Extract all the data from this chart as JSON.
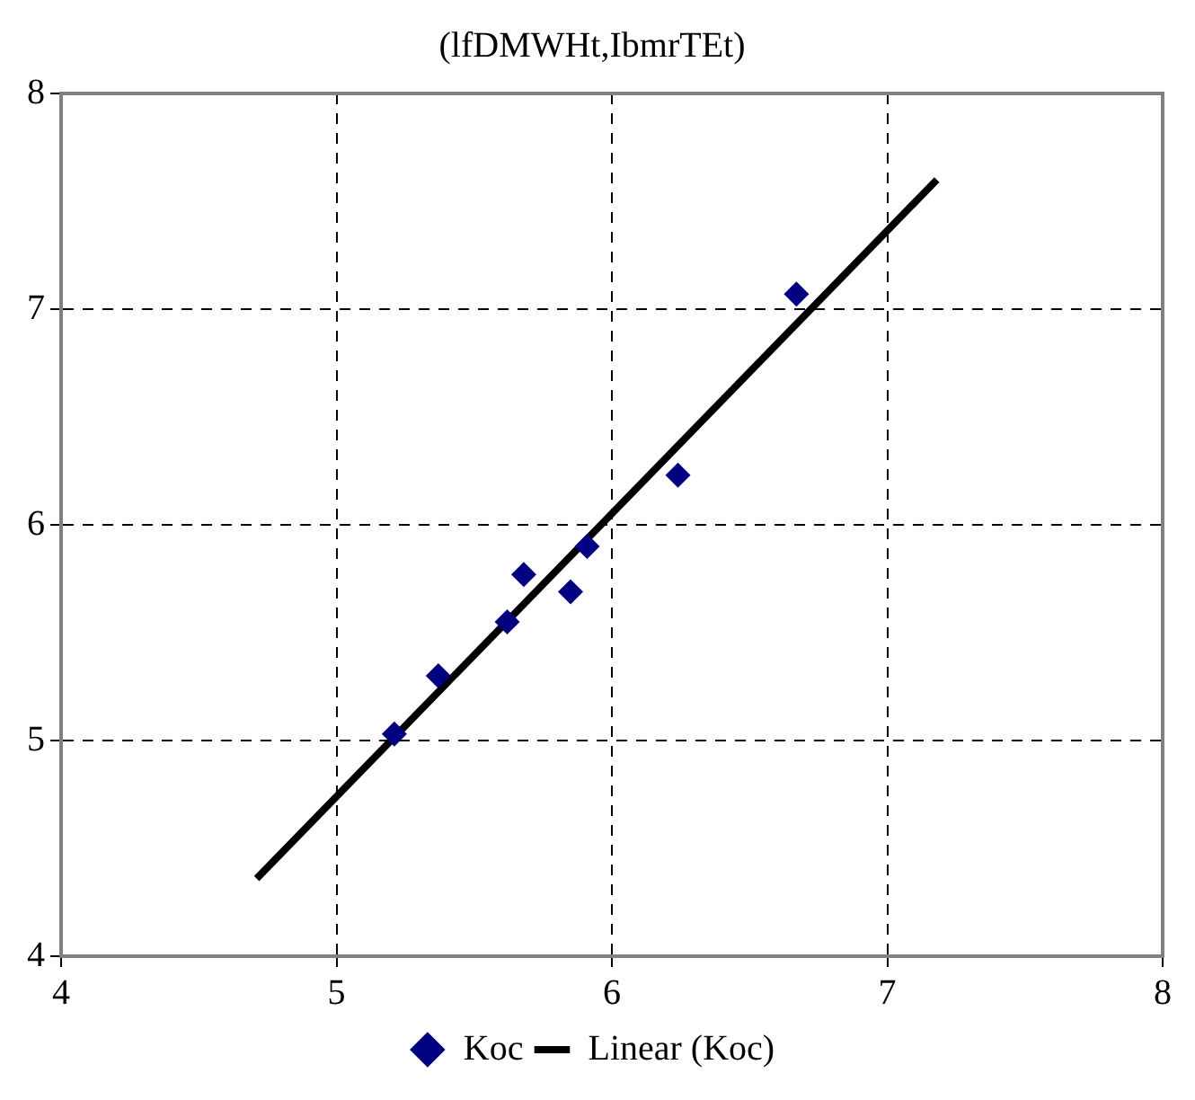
{
  "chart_data": {
    "type": "scatter",
    "title": "(lfDMWHt,IbmrTEt)",
    "series": [
      {
        "name": "Koc",
        "type": "scatter",
        "color": "#000080",
        "marker": "diamond",
        "x": [
          5.21,
          5.37,
          5.62,
          5.68,
          5.85,
          5.91,
          6.24,
          6.67
        ],
        "values": [
          5.03,
          5.3,
          5.55,
          5.77,
          5.69,
          5.9,
          6.23,
          7.07
        ]
      },
      {
        "name": "Linear (Koc)",
        "type": "line",
        "color": "#000000",
        "marker": "none",
        "line_style": "solid",
        "x": [
          4.71,
          7.18
        ],
        "values": [
          4.36,
          7.6
        ]
      }
    ],
    "xlim": [
      4,
      8
    ],
    "xticks": [
      4,
      5,
      6,
      7,
      8
    ],
    "ylim": [
      4,
      8
    ],
    "yticks": [
      4,
      5,
      6,
      7,
      8
    ],
    "grid": true,
    "legend": "bottom"
  }
}
